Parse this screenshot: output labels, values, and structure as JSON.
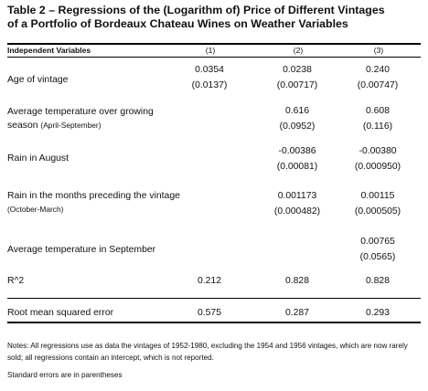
{
  "title_line1": "Table 2 – Regressions of the (Logarithm of) Price of Different Vintages",
  "title_line2": "of a Portfolio of Bordeaux Chateau Wines on Weather Variables",
  "header": {
    "independent_variables": "Independent Variables",
    "col1": "(1)",
    "col2": "(2)",
    "col3": "(3)"
  },
  "rows": [
    {
      "label": "Age of vintage",
      "label_note": "",
      "c1": [
        "0.0354",
        "(0.0137)"
      ],
      "c2": [
        "0.0238",
        "(0.00717)"
      ],
      "c3": [
        "0.240",
        "(0.00747)"
      ]
    },
    {
      "label": "Average temperature over growing season",
      "label_note": "(April-September)",
      "c1": [
        "",
        ""
      ],
      "c2": [
        "0.616",
        "(0.0952)"
      ],
      "c3": [
        "0.608",
        "(0.116)"
      ]
    },
    {
      "label": "Rain in August",
      "label_note": "",
      "c1": [
        "",
        ""
      ],
      "c2": [
        "-0.00386",
        "(0.00081)"
      ],
      "c3": [
        "-0.00380",
        "(0.000950)"
      ]
    },
    {
      "label": "Rain in the months preceding the vintage",
      "label_note": "(October-March)",
      "c1": [
        "",
        ""
      ],
      "c2": [
        "0.001173",
        "(0.000482)"
      ],
      "c3": [
        "0.00115",
        "(0.000505)"
      ]
    },
    {
      "label": "Average temperature in September",
      "label_note": "",
      "c1": [
        "",
        ""
      ],
      "c2": [
        "",
        ""
      ],
      "c3": [
        "0.00765",
        "(0.0565)"
      ]
    }
  ],
  "r2": {
    "label": "R^2",
    "c1": "0.212",
    "c2": "0.828",
    "c3": "0.828"
  },
  "rmse": {
    "label": "Root mean squared error",
    "c1": "0.575",
    "c2": "0.287",
    "c3": "0.293"
  },
  "notes": "Notes: All regressions use as data the vintages of 1952-1980, excluding the 1954 and 1956 vintages, which are now rarely sold; all regressions contain an intercept, which is not reported.",
  "footnote": "Standard errors are in parentheses"
}
